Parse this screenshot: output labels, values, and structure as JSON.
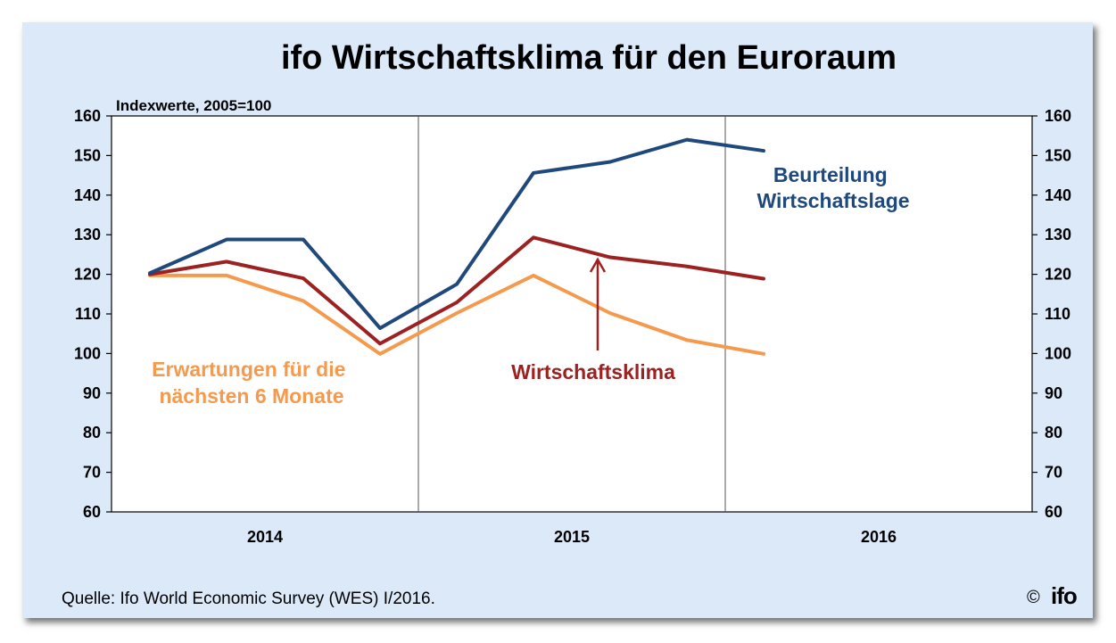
{
  "title": "ifo Wirtschaftsklima für den Euroraum",
  "source": "Quelle: Ifo World Economic Survey (WES) I/2016.",
  "copyright": "©",
  "logo_text": "ifo",
  "chart_data": {
    "type": "line",
    "unit_label": "Indexwerte, 2005=100",
    "ylim": [
      60,
      160
    ],
    "yticks": [
      "60",
      "70",
      "80",
      "90",
      "100",
      "110",
      "120",
      "130",
      "140",
      "150",
      "160"
    ],
    "xticks": [
      "2014",
      "2015",
      "2016"
    ],
    "x_periods": [
      "2014 Q1",
      "2014 Q2",
      "2014 Q3",
      "2014 Q4",
      "2015 Q1",
      "2015 Q2",
      "2015 Q3",
      "2015 Q4",
      "2016 Q1",
      "2016 Q2",
      "2016 Q3",
      "2016 Q4"
    ],
    "grid": false,
    "series": [
      {
        "name": "Beurteilung Wirtschaftslage",
        "label_lines": [
          "Beurteilung",
          "Wirtschaftslage"
        ],
        "color": "#1f497d",
        "values": [
          120.3,
          128.8,
          128.8,
          106.4,
          117.5,
          145.6,
          148.4,
          154.0,
          151.2
        ]
      },
      {
        "name": "Wirtschaftsklima",
        "label_lines": [
          "Wirtschaftsklima"
        ],
        "color": "#9b2220",
        "values": [
          120.0,
          123.2,
          119.0,
          102.5,
          112.9,
          129.3,
          124.3,
          122.0,
          118.9
        ]
      },
      {
        "name": "Erwartungen für die nächsten 6 Monate",
        "label_lines": [
          "Erwartungen für die",
          "nächsten 6 Monate"
        ],
        "color": "#f59a4d",
        "values": [
          119.7,
          119.7,
          113.3,
          99.9,
          110.2,
          119.7,
          110.2,
          103.4,
          99.9
        ]
      }
    ]
  }
}
